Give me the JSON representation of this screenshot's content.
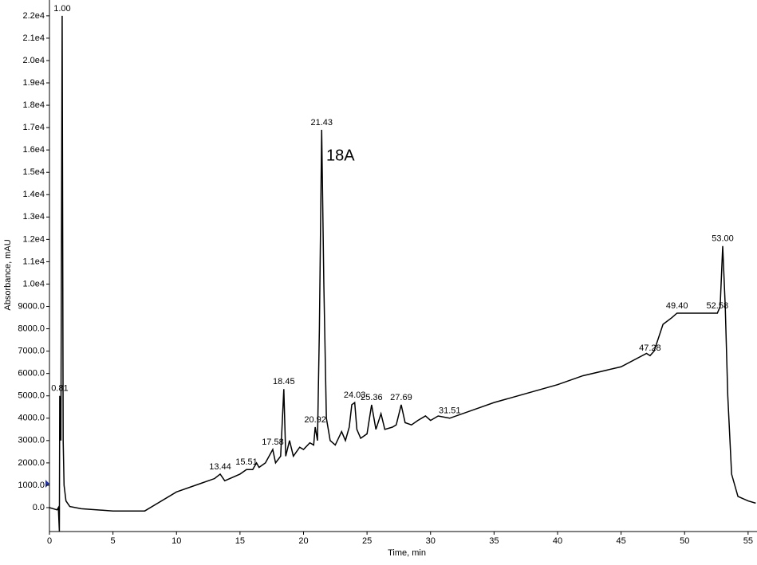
{
  "chart_data": {
    "type": "line",
    "x_label": "Time, min",
    "y_label": "Absorbance, mAU",
    "annotation": "18A",
    "xlim": [
      0,
      55.7
    ],
    "ylim": [
      -1070,
      22430
    ],
    "xticks": [
      0,
      5,
      10,
      15,
      20,
      25,
      30,
      35,
      40,
      45,
      50,
      55
    ],
    "yticks": [
      {
        "value": 0,
        "label": "0.0"
      },
      {
        "value": 1000,
        "label": "1000.0"
      },
      {
        "value": 2000,
        "label": "2000.0"
      },
      {
        "value": 3000,
        "label": "3000.0"
      },
      {
        "value": 4000,
        "label": "4000.0"
      },
      {
        "value": 5000,
        "label": "5000.0"
      },
      {
        "value": 6000,
        "label": "6000.0"
      },
      {
        "value": 7000,
        "label": "7000.0"
      },
      {
        "value": 8000,
        "label": "8000.0"
      },
      {
        "value": 9000,
        "label": "9000.0"
      },
      {
        "value": 10000,
        "label": "1.0e4"
      },
      {
        "value": 11000,
        "label": "1.1e4"
      },
      {
        "value": 12000,
        "label": "1.2e4"
      },
      {
        "value": 13000,
        "label": "1.3e4"
      },
      {
        "value": 14000,
        "label": "1.4e4"
      },
      {
        "value": 15000,
        "label": "1.5e4"
      },
      {
        "value": 16000,
        "label": "1.6e4"
      },
      {
        "value": 17000,
        "label": "1.7e4"
      },
      {
        "value": 18000,
        "label": "1.8e4"
      },
      {
        "value": 19000,
        "label": "1.9e4"
      },
      {
        "value": 20000,
        "label": "2.0e4"
      },
      {
        "value": 21000,
        "label": "2.1e4"
      },
      {
        "value": 22000,
        "label": "2.2e4"
      }
    ],
    "color": "#000000",
    "x": [
      0,
      0.6,
      0.7,
      0.78,
      0.81,
      0.9,
      1.0,
      1.08,
      1.15,
      1.3,
      1.6,
      2.5,
      5,
      7.5,
      10,
      12,
      13.0,
      13.44,
      13.8,
      15,
      15.51,
      16.0,
      16.3,
      16.5,
      17.0,
      17.58,
      17.8,
      18.2,
      18.45,
      18.6,
      18.9,
      19.2,
      19.7,
      20,
      20.5,
      20.8,
      20.92,
      21.1,
      21.25,
      21.43,
      21.6,
      21.8,
      22.1,
      22.5,
      23,
      23.3,
      23.6,
      23.8,
      24.03,
      24.2,
      24.5,
      25,
      25.36,
      25.7,
      26.1,
      26.4,
      27,
      27.3,
      27.69,
      28,
      28.5,
      29,
      29.6,
      30,
      30.6,
      31.51,
      35,
      40,
      42,
      45,
      47,
      47.28,
      47.6,
      48.3,
      49,
      49.4,
      50,
      52.58,
      52.8,
      53.0,
      53.2,
      53.4,
      53.7,
      54.2,
      55,
      55.6
    ],
    "values": [
      0,
      -100,
      0,
      -1050,
      5000,
      3000,
      22000,
      3000,
      1000,
      300,
      50,
      -50,
      -150,
      -150,
      700,
      1100,
      1300,
      1500,
      1200,
      1500,
      1700,
      1700,
      2000,
      1800,
      2000,
      2600,
      2000,
      2300,
      5300,
      2300,
      3000,
      2300,
      2700,
      2600,
      2900,
      2800,
      3600,
      3000,
      8000,
      16900,
      10000,
      4000,
      3000,
      2800,
      3400,
      3000,
      3600,
      4600,
      4700,
      3500,
      3100,
      3300,
      4600,
      3500,
      4200,
      3500,
      3600,
      3700,
      4600,
      3800,
      3700,
      3900,
      4100,
      3900,
      4100,
      4000,
      4700,
      5500,
      5900,
      6300,
      6900,
      6800,
      7000,
      8200,
      8500,
      8700,
      8700,
      8700,
      9000,
      11700,
      9000,
      5000,
      1500,
      500,
      300,
      200
    ],
    "peaks": [
      {
        "label": "1.00",
        "x": 1.0,
        "y": 22000
      },
      {
        "label": "0.81",
        "x": 0.81,
        "y": 5000
      },
      {
        "label": "13.44",
        "x": 13.44,
        "y": 1500
      },
      {
        "label": "15.51",
        "x": 15.51,
        "y": 1700
      },
      {
        "label": "17.58",
        "x": 17.58,
        "y": 2600
      },
      {
        "label": "18.45",
        "x": 18.45,
        "y": 5300
      },
      {
        "label": "20.92",
        "x": 20.92,
        "y": 3600
      },
      {
        "label": "21.43",
        "x": 21.43,
        "y": 16900
      },
      {
        "label": "24.03",
        "x": 24.03,
        "y": 4700
      },
      {
        "label": "25.36",
        "x": 25.36,
        "y": 4600
      },
      {
        "label": "27.69",
        "x": 27.69,
        "y": 4600
      },
      {
        "label": "31.51",
        "x": 31.51,
        "y": 4000
      },
      {
        "label": "47.28",
        "x": 47.28,
        "y": 6800
      },
      {
        "label": "49.40",
        "x": 49.4,
        "y": 8700
      },
      {
        "label": "52.58",
        "x": 52.58,
        "y": 8700
      },
      {
        "label": "53.00",
        "x": 53.0,
        "y": 11700
      }
    ]
  }
}
